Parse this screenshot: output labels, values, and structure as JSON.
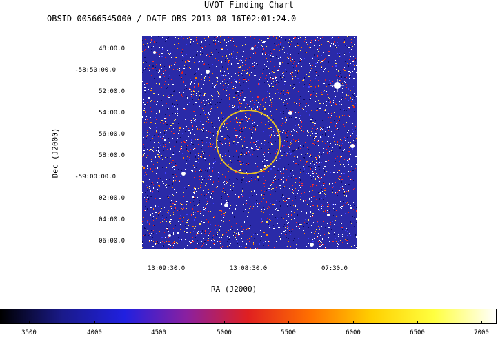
{
  "title": "UVOT Finding Chart",
  "subtitle": "OBSID 00566545000 / DATE-OBS 2013-08-16T02:01:24.0",
  "dec_axis": {
    "label": "Dec (J2000)",
    "ticks": [
      "48:00.0",
      "-58:50:00.0",
      "52:00.0",
      "54:00.0",
      "56:00.0",
      "58:00.0",
      "-59:00:00.0",
      "02:00.0",
      "04:00.0",
      "06:00.0"
    ]
  },
  "ra_axis": {
    "label": "RA (J2000)",
    "ticks": [
      "13:09:30.0",
      "13:08:30.0",
      "07:30.0"
    ]
  },
  "colorbar": {
    "ticks": [
      "3500",
      "4000",
      "4500",
      "5000",
      "5500",
      "6000",
      "6500",
      "7000"
    ],
    "stops": [
      "#000000",
      "#1a1a8a",
      "#2020e0",
      "#8a20a0",
      "#e02020",
      "#ff7000",
      "#ffd000",
      "#ffff40",
      "#ffffff"
    ]
  },
  "colors": {
    "image_background": "#2a2aa8",
    "circle": "#e8c020"
  }
}
